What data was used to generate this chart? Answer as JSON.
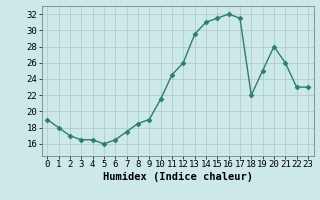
{
  "x": [
    0,
    1,
    2,
    3,
    4,
    5,
    6,
    7,
    8,
    9,
    10,
    11,
    12,
    13,
    14,
    15,
    16,
    17,
    18,
    19,
    20,
    21,
    22,
    23
  ],
  "y": [
    19.0,
    18.0,
    17.0,
    16.5,
    16.5,
    16.0,
    16.5,
    17.5,
    18.5,
    19.0,
    21.5,
    24.5,
    26.0,
    29.5,
    31.0,
    31.5,
    32.0,
    31.5,
    22.0,
    25.0,
    28.0,
    26.0,
    23.0,
    23.0
  ],
  "line_color": "#2e7d6e",
  "marker": "D",
  "marker_size": 2.5,
  "bg_color": "#cce8e8",
  "grid_color": "#b0cccc",
  "xlabel": "Humidex (Indice chaleur)",
  "xlim": [
    -0.5,
    23.5
  ],
  "ylim": [
    14.5,
    33.0
  ],
  "yticks": [
    16,
    18,
    20,
    22,
    24,
    26,
    28,
    30,
    32
  ],
  "xticks": [
    0,
    1,
    2,
    3,
    4,
    5,
    6,
    7,
    8,
    9,
    10,
    11,
    12,
    13,
    14,
    15,
    16,
    17,
    18,
    19,
    20,
    21,
    22,
    23
  ],
  "xlabel_fontsize": 7.5,
  "tick_fontsize": 6.5,
  "linewidth": 1.0
}
